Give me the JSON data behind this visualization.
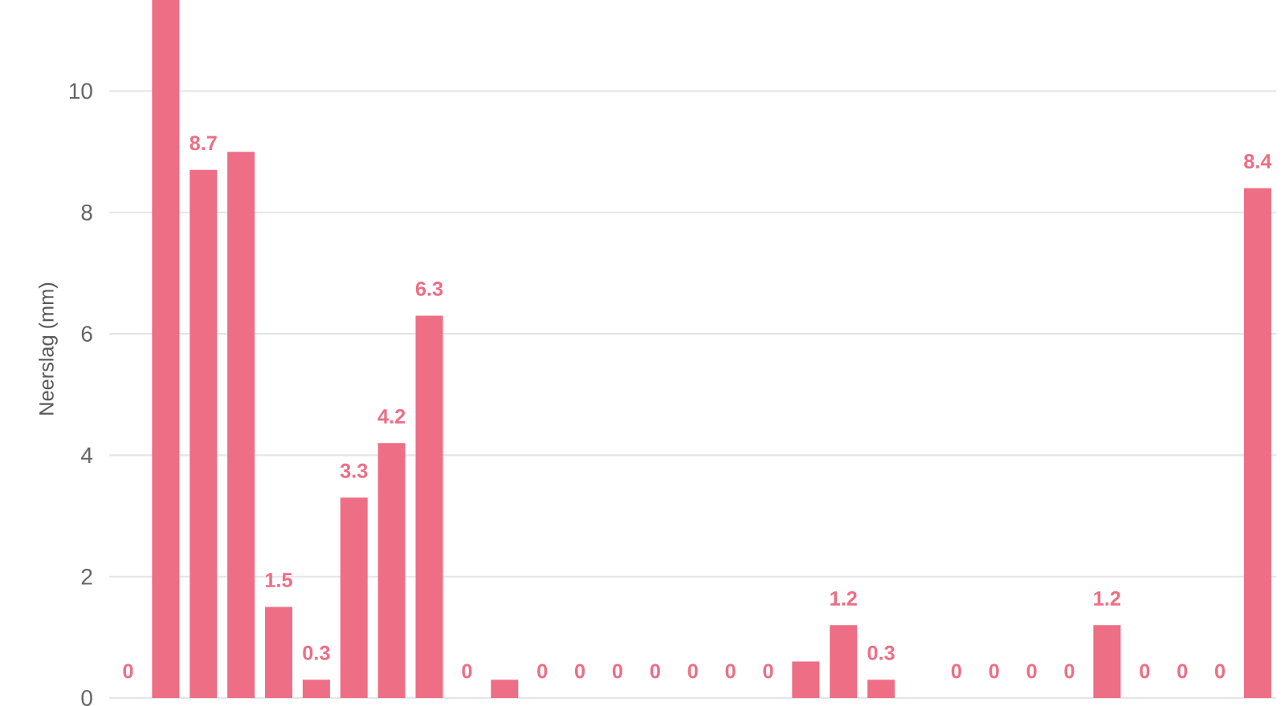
{
  "chart_data": {
    "type": "bar",
    "ylabel": "Neerslag (mm)",
    "categories": [
      null,
      null,
      null,
      null,
      null,
      null,
      null,
      null,
      null,
      null,
      null,
      null,
      null,
      null,
      null,
      null,
      null,
      null,
      null,
      null,
      null,
      null,
      null,
      null,
      null,
      null,
      null,
      null,
      null,
      null,
      null
    ],
    "values": [
      0,
      11.5,
      8.7,
      9.0,
      1.5,
      0.3,
      3.3,
      4.2,
      6.3,
      0,
      0.3,
      0,
      0,
      0,
      0,
      0,
      0,
      0,
      0.6,
      1.2,
      0.3,
      null,
      0,
      0,
      0,
      0,
      1.2,
      0,
      0,
      0,
      8.4
    ],
    "value_labels": [
      "0",
      null,
      "8.7",
      null,
      "1.5",
      "0.3",
      "3.3",
      "4.2",
      "6.3",
      "0",
      null,
      "0",
      "0",
      "0",
      "0",
      "0",
      "0",
      "0",
      null,
      "1.2",
      "0.3",
      null,
      "0",
      "0",
      "0",
      "0",
      "1.2",
      "0",
      "0",
      "0",
      "8.4"
    ],
    "color": "#ee6e85",
    "ylim": [
      0,
      11.5
    ],
    "yticks": [
      0,
      2,
      4,
      6,
      8,
      10
    ],
    "grid": "y"
  }
}
